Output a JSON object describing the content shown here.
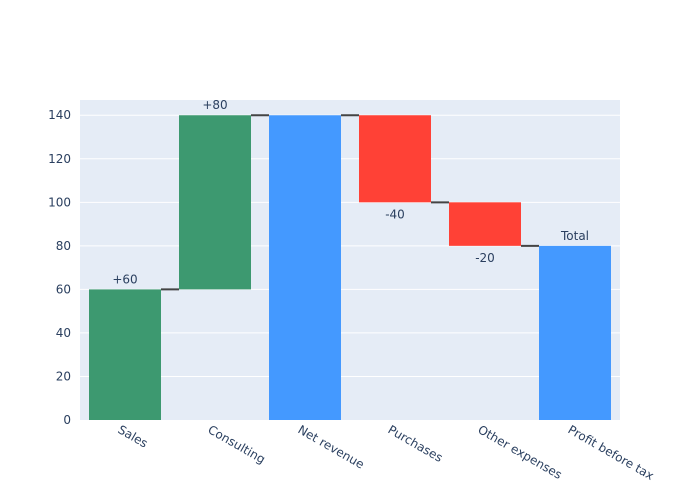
{
  "chart_data": {
    "type": "waterfall",
    "categories": [
      "Sales",
      "Consulting",
      "Net revenue",
      "Purchases",
      "Other expenses",
      "Profit before tax"
    ],
    "measures": [
      "relative",
      "relative",
      "total",
      "relative",
      "relative",
      "total"
    ],
    "values": [
      60,
      80,
      140,
      -40,
      -20,
      80
    ],
    "data_labels": [
      "+60",
      "+80",
      "",
      "-40",
      "-20",
      "Total"
    ],
    "ylim": [
      0,
      147
    ],
    "yticks": [
      0,
      20,
      40,
      60,
      80,
      100,
      120,
      140
    ],
    "grid": true,
    "colors": {
      "increasing": "#3d9970",
      "decreasing": "#ff4136",
      "total": "#4499ff",
      "connector": "#444444",
      "plot_bg": "#e5ecf6",
      "grid": "#ffffff",
      "tick_text": "#2a3f5f"
    }
  }
}
